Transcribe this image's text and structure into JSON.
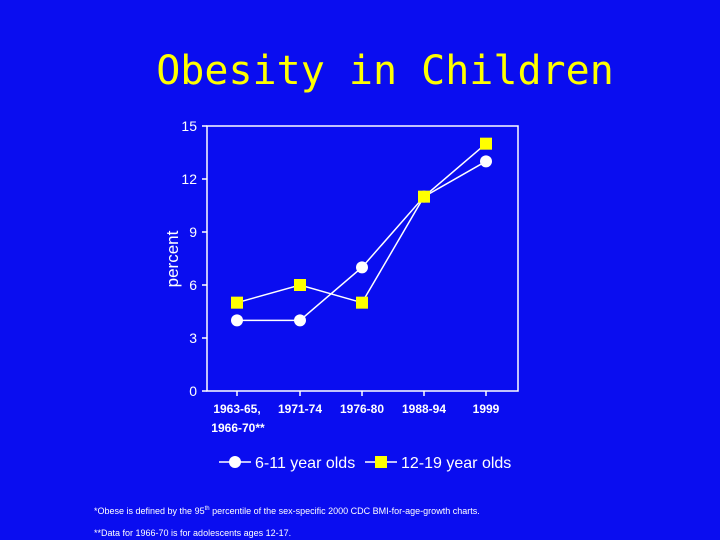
{
  "chart_data": {
    "type": "line",
    "title": "Obesity in Children",
    "xlabel": "",
    "ylabel": "percent",
    "ylim": [
      0,
      15
    ],
    "yticks": [
      0,
      3,
      6,
      9,
      12,
      15
    ],
    "categories": [
      "1963-65, 1966-70**",
      "1971-74",
      "1976-80",
      "1988-94",
      "1999"
    ],
    "category_lines": [
      [
        "1963-65,",
        "1966-70**"
      ],
      [
        "1971-74"
      ],
      [
        "1976-80"
      ],
      [
        "1988-94"
      ],
      [
        "1999"
      ]
    ],
    "series": [
      {
        "name": "6-11 year olds",
        "marker": "circle",
        "values": [
          4,
          4,
          7,
          11,
          13
        ]
      },
      {
        "name": "12-19 year olds",
        "marker": "square",
        "values": [
          5,
          6,
          5,
          11,
          14
        ]
      }
    ],
    "legend": "bottom",
    "colors": {
      "background": "#0a0df0",
      "axis": "#ffffff",
      "series1": "#ffffff",
      "series2": "#ffff00",
      "title": "#ffff00"
    }
  },
  "footnotes": {
    "fn1_pre": "*Obese is defined by the 95",
    "fn1_sup": "th",
    "fn1_post": " percentile of the sex-specific 2000 CDC BMI-for-age-growth charts.",
    "fn2": "**Data for 1966-70 is for adolescents ages 12-17."
  }
}
